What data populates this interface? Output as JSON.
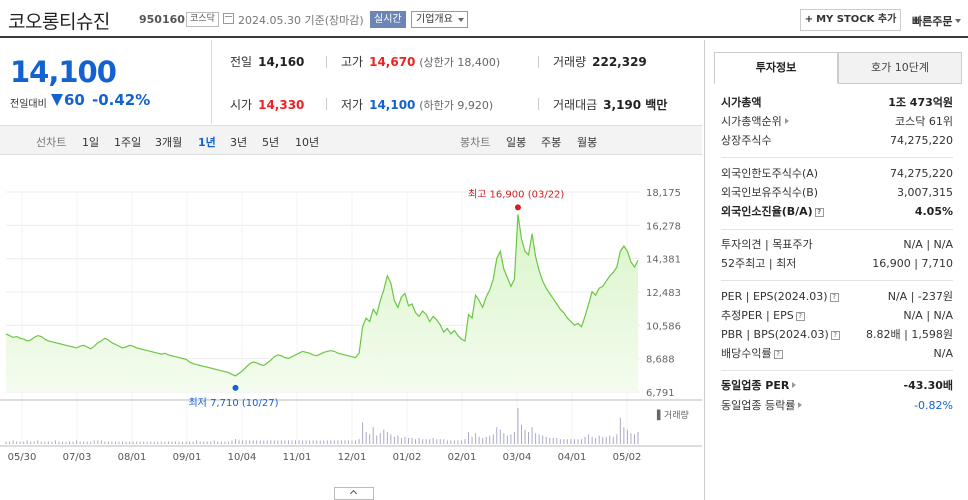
{
  "header": {
    "stock_name": "코오롱티슈진",
    "stock_code": "950160",
    "market": "코스닥",
    "date": "2024.05.30  기준(장마감)",
    "realtime": "실시간",
    "company_overview": "기업개요",
    "mystock_label": "MY STOCK 추가",
    "quick_order": "빠른주문"
  },
  "price": {
    "current": "14,100",
    "change_label": "전일대비",
    "change_abs": "60",
    "change_pct": "-0.42%"
  },
  "stats": {
    "prev_close_label": "전일",
    "prev_close": "14,160",
    "high_label": "고가",
    "high": "14,670",
    "upper_limit": "(상한가 18,400)",
    "volume_label": "거래량",
    "volume": "222,329",
    "open_label": "시가",
    "open": "14,330",
    "low_label": "저가",
    "low": "14,100",
    "lower_limit": "(하한가 9,920)",
    "amount_label": "거래대금",
    "amount": "3,190 백만"
  },
  "period_bar": {
    "line_caption": "선차트",
    "periods": [
      "1일",
      "1주일",
      "3개월",
      "1년",
      "3년",
      "5년",
      "10년"
    ],
    "active_period": "1년",
    "candle_caption": "봉차트",
    "candles": [
      "일봉",
      "주봉",
      "월봉"
    ]
  },
  "right_panel": {
    "tabs": [
      "투자정보",
      "호가 10단계"
    ],
    "market_cap_label": "시가총액",
    "market_cap": "1조 473억원",
    "market_cap_rank_label": "시가총액순위",
    "market_cap_rank": "코스닥 61위",
    "shares_label": "상장주식수",
    "shares": "74,275,220",
    "foreign_limit_label": "외국인한도주식수(A)",
    "foreign_limit": "74,275,220",
    "foreign_hold_label": "외국인보유주식수(B)",
    "foreign_hold": "3,007,315",
    "foreign_ratio_label": "외국인소진율(B/A)",
    "foreign_ratio": "4.05%",
    "opinion_label": "투자의견",
    "target_label": "목표주가",
    "opinion": "N/A",
    "target": "N/A",
    "w52_label": "52주최고",
    "w52_low_label": "최저",
    "w52_high": "16,900",
    "w52_low": "7,710",
    "per_label": "PER",
    "eps_label": "EPS(2024.03)",
    "per": "N/A",
    "eps": "-237원",
    "est_per_label": "추정PER",
    "est_eps_label": "EPS",
    "est_per": "N/A",
    "est_eps": "N/A",
    "pbr_label": "PBR",
    "bps_label": "BPS(2024.03)",
    "pbr": "8.82배",
    "bps": "1,598원",
    "dividend_label": "배당수익률",
    "dividend": "N/A",
    "industry_per_label": "동일업종 PER",
    "industry_per": "-43.30배",
    "industry_change_label": "동일업종 등락률",
    "industry_change": "-0.82%"
  },
  "chart_data": {
    "type": "line",
    "y_ticks": [
      "18,175",
      "16,278",
      "14,381",
      "12,483",
      "10,586",
      "8,688",
      "6,791"
    ],
    "y_tick_values": [
      18175,
      16278,
      14381,
      12483,
      10586,
      8688,
      6791
    ],
    "x_ticks": [
      "05/30",
      "07/03",
      "08/01",
      "09/01",
      "10/04",
      "11/01",
      "12/01",
      "01/02",
      "02/01",
      "03/04",
      "04/01",
      "05/02"
    ],
    "max_annotation": "최고 16,900 (03/22)",
    "min_annotation": "최저 7,710 (10/27)",
    "max_point": {
      "date": "03/22",
      "value": 16900
    },
    "min_point": {
      "date": "10/27",
      "value": 7710
    },
    "volume_label": "거래량",
    "ylim": [
      6791,
      18175
    ],
    "colors": {
      "line": "#6cc644",
      "fill": "#d9f5c9",
      "max": "#d21f1f",
      "min": "#1462d0"
    },
    "price": [
      10100,
      10000,
      9900,
      9950,
      9850,
      9800,
      9700,
      9750,
      9900,
      10000,
      9950,
      9800,
      9700,
      9650,
      9600,
      9550,
      9500,
      9450,
      9400,
      9350,
      9300,
      9400,
      9450,
      9350,
      9250,
      9400,
      9600,
      9700,
      9850,
      9750,
      9600,
      9500,
      9400,
      9300,
      9350,
      9450,
      9400,
      9300,
      9250,
      9200,
      9150,
      9100,
      9050,
      9000,
      8950,
      9000,
      8900,
      8850,
      8800,
      8750,
      8700,
      8650,
      8500,
      8400,
      8350,
      8300,
      8250,
      8200,
      8150,
      8100,
      8050,
      8000,
      7950,
      7900,
      7800,
      7710,
      7850,
      8000,
      8200,
      8400,
      8500,
      8450,
      8350,
      8300,
      8450,
      8600,
      8800,
      8900,
      8850,
      8750,
      8700,
      8800,
      8900,
      9000,
      9100,
      9050,
      9000,
      8900,
      8850,
      8950,
      9050,
      9100,
      9150,
      9100,
      9000,
      8950,
      8900,
      8850,
      8800,
      8750,
      9000,
      10500,
      11000,
      10800,
      11500,
      11200,
      12000,
      12600,
      13400,
      13000,
      12000,
      11600,
      12200,
      12400,
      11700,
      11800,
      11300,
      11100,
      11400,
      11200,
      10800,
      11100,
      10900,
      10600,
      10200,
      10400,
      10100,
      10300,
      10000,
      9800,
      9700,
      11200,
      11000,
      12300,
      12000,
      11600,
      12200,
      12600,
      13200,
      14400,
      14800,
      13800,
      13300,
      12800,
      13200,
      16900,
      15500,
      14800,
      14600,
      15800,
      14500,
      13700,
      13100,
      12700,
      12400,
      12100,
      11800,
      11500,
      11300,
      11000,
      10800,
      10600,
      10700,
      10500,
      11100,
      11800,
      12500,
      12300,
      12700,
      12800,
      13100,
      13400,
      13600,
      13900,
      14800,
      15100,
      14800,
      14200,
      13900,
      14300
    ],
    "volume": [
      2,
      2,
      3,
      2,
      2,
      2,
      3,
      2,
      2,
      3,
      2,
      2,
      2,
      2,
      3,
      2,
      2,
      2,
      2,
      2,
      3,
      2,
      2,
      2,
      2,
      3,
      3,
      3,
      2,
      2,
      2,
      2,
      2,
      2,
      2,
      2,
      2,
      2,
      2,
      2,
      2,
      2,
      2,
      2,
      2,
      2,
      2,
      2,
      2,
      2,
      2,
      2,
      2,
      2,
      3,
      2,
      2,
      2,
      2,
      3,
      2,
      2,
      2,
      2,
      3,
      4,
      3,
      3,
      3,
      3,
      3,
      3,
      3,
      3,
      3,
      3,
      3,
      3,
      3,
      3,
      3,
      3,
      3,
      3,
      3,
      3,
      3,
      3,
      3,
      3,
      3,
      3,
      3,
      3,
      3,
      3,
      3,
      3,
      3,
      3,
      4,
      18,
      10,
      8,
      14,
      7,
      9,
      12,
      10,
      8,
      6,
      7,
      5,
      6,
      5,
      5,
      4,
      5,
      4,
      4,
      4,
      5,
      4,
      4,
      4,
      3,
      3,
      3,
      3,
      3,
      4,
      10,
      6,
      9,
      6,
      5,
      6,
      7,
      8,
      14,
      12,
      9,
      7,
      8,
      10,
      30,
      16,
      12,
      10,
      14,
      9,
      8,
      7,
      6,
      5,
      5,
      5,
      4,
      4,
      4,
      4,
      4,
      4,
      4,
      6,
      8,
      6,
      5,
      7,
      6,
      6,
      7,
      6,
      8,
      22,
      14,
      12,
      9,
      8,
      10
    ]
  }
}
